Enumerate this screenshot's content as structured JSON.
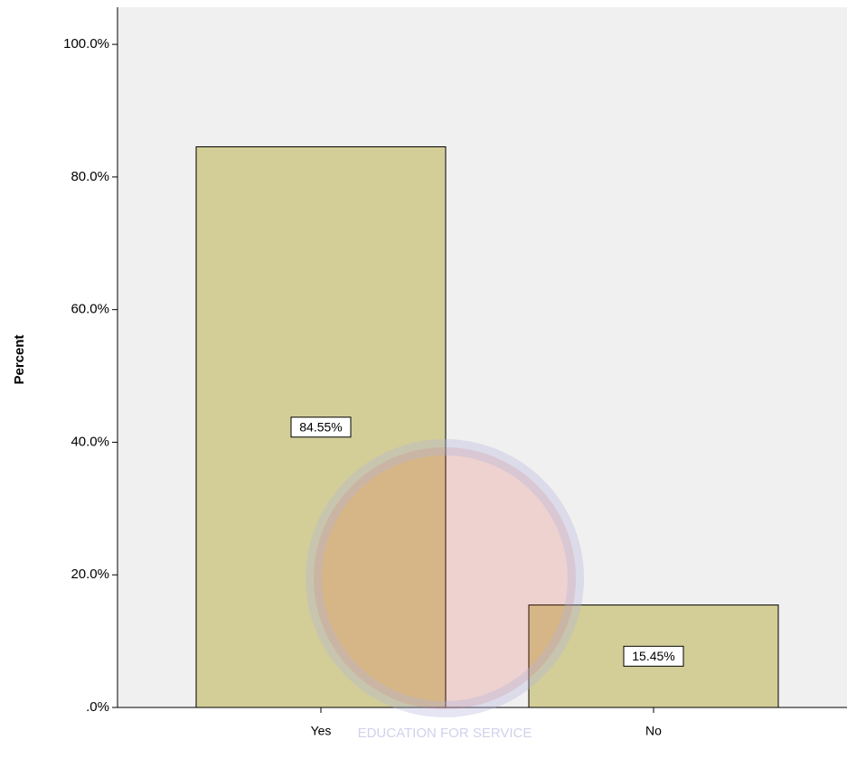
{
  "chart_data": {
    "type": "bar",
    "y_label": "Percent",
    "categories": [
      "Yes",
      "No"
    ],
    "values": [
      84.55,
      15.45
    ],
    "value_labels": [
      "84.55%",
      "15.45%"
    ],
    "color": "#d3ce97",
    "ylim": [
      0,
      105.6
    ],
    "yticks": [
      {
        "value": 0,
        "label": ".0%"
      },
      {
        "value": 20,
        "label": "20.0%"
      },
      {
        "value": 40,
        "label": "40.0%"
      },
      {
        "value": 60,
        "label": "60.0%"
      },
      {
        "value": 80,
        "label": "80.0%"
      },
      {
        "value": 100,
        "label": "100.0%"
      }
    ],
    "grid": false,
    "watermark": "EDUCATION FOR SERVICE"
  }
}
